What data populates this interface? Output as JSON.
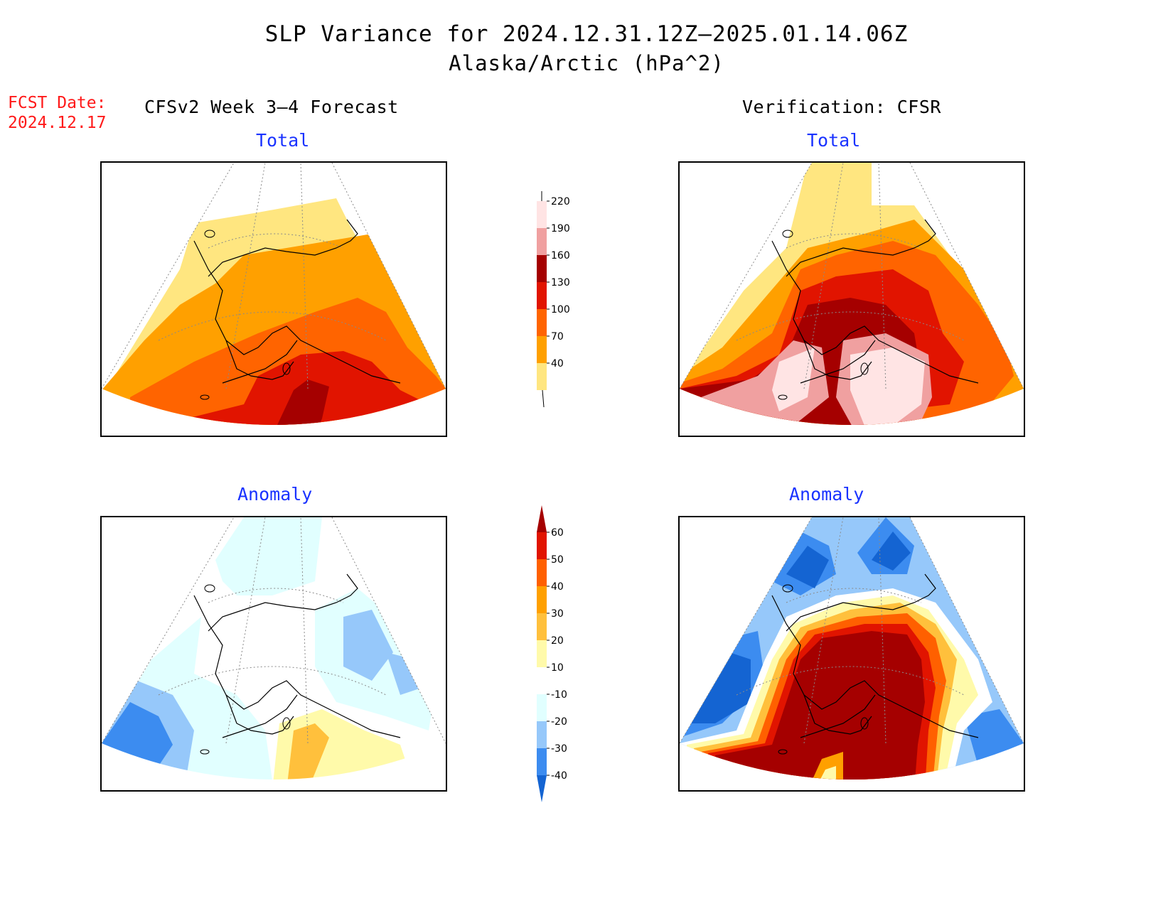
{
  "header": {
    "title": "SLP Variance for 2024.12.31.12Z–2025.01.14.06Z",
    "subtitle": "Alaska/Arctic (hPa^2)"
  },
  "fcst": {
    "label": "FCST Date:",
    "date": "2024.12.17"
  },
  "columns": {
    "left": "CFSv2 Week 3–4 Forecast",
    "right": "Verification: CFSR"
  },
  "panels": {
    "top_left": "Total",
    "top_right": "Total",
    "bottom_left": "Anomaly",
    "bottom_right": "Anomaly"
  },
  "colorbars": {
    "total": {
      "levels": [
        "40",
        "70",
        "100",
        "130",
        "160",
        "190",
        "220"
      ],
      "colors": [
        "#ffe680",
        "#ffa000",
        "#ff6400",
        "#e11400",
        "#a50000",
        "#f0a0a0",
        "#ffe4e4"
      ]
    },
    "anomaly": {
      "levels": [
        "-40",
        "-30",
        "-20",
        "-10",
        "10",
        "20",
        "30",
        "40",
        "50",
        "60"
      ],
      "colors": [
        "#1464d2",
        "#3c8cf0",
        "#96c8fa",
        "#e1ffff",
        "#ffffff",
        "#fffaaa",
        "#ffc03c",
        "#ffa000",
        "#ff6000",
        "#e11400",
        "#a50000"
      ]
    }
  }
}
